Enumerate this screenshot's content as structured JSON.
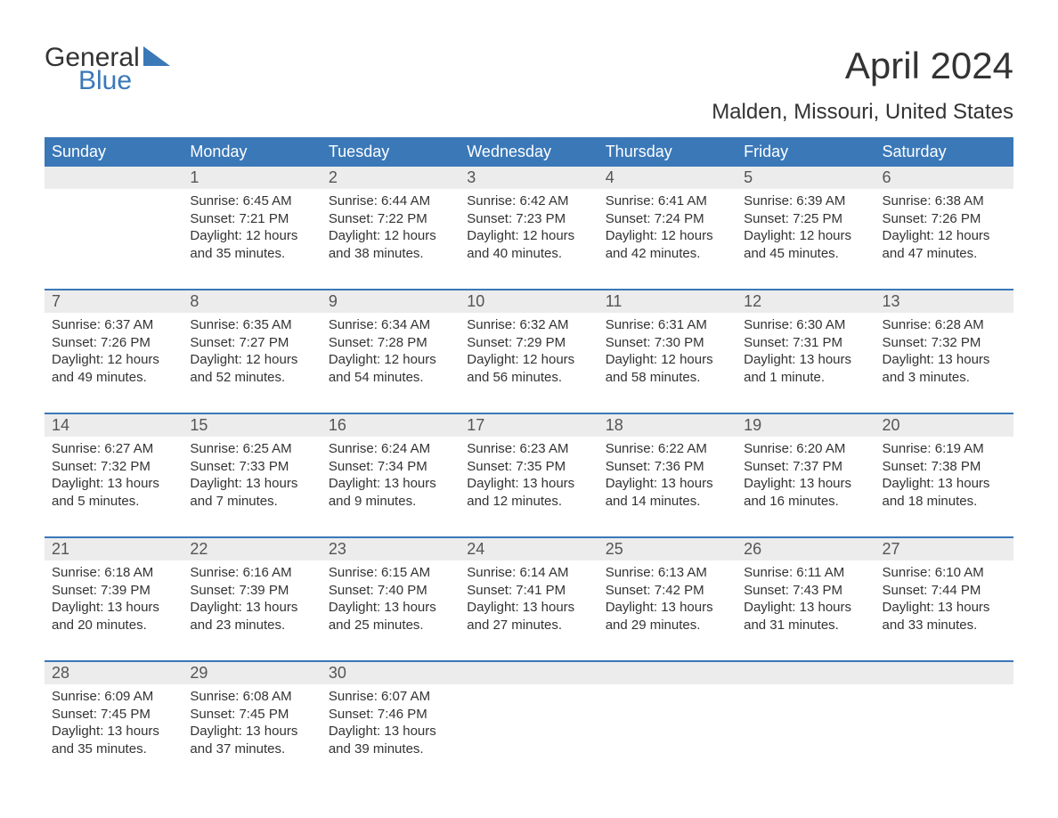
{
  "logo": {
    "word1": "General",
    "word2": "Blue",
    "word1_color": "#333333",
    "word2_color": "#3a78b8",
    "triangle_color": "#3a78b8"
  },
  "title": "April 2024",
  "subtitle": "Malden, Missouri, United States",
  "colors": {
    "header_bg": "#3a78b8",
    "header_text": "#ffffff",
    "daynum_bg": "#ececec",
    "divider": "#3a78b8",
    "body_text": "#333333",
    "background": "#ffffff"
  },
  "font": {
    "title_size": 42,
    "subtitle_size": 24,
    "dayhead_size": 18,
    "daynum_size": 18,
    "cell_size": 15
  },
  "day_headers": [
    "Sunday",
    "Monday",
    "Tuesday",
    "Wednesday",
    "Thursday",
    "Friday",
    "Saturday"
  ],
  "weeks": [
    {
      "nums": [
        "",
        "1",
        "2",
        "3",
        "4",
        "5",
        "6"
      ],
      "cells": [
        {
          "sunrise": "",
          "sunset": "",
          "daylight1": "",
          "daylight2": ""
        },
        {
          "sunrise": "Sunrise: 6:45 AM",
          "sunset": "Sunset: 7:21 PM",
          "daylight1": "Daylight: 12 hours",
          "daylight2": "and 35 minutes."
        },
        {
          "sunrise": "Sunrise: 6:44 AM",
          "sunset": "Sunset: 7:22 PM",
          "daylight1": "Daylight: 12 hours",
          "daylight2": "and 38 minutes."
        },
        {
          "sunrise": "Sunrise: 6:42 AM",
          "sunset": "Sunset: 7:23 PM",
          "daylight1": "Daylight: 12 hours",
          "daylight2": "and 40 minutes."
        },
        {
          "sunrise": "Sunrise: 6:41 AM",
          "sunset": "Sunset: 7:24 PM",
          "daylight1": "Daylight: 12 hours",
          "daylight2": "and 42 minutes."
        },
        {
          "sunrise": "Sunrise: 6:39 AM",
          "sunset": "Sunset: 7:25 PM",
          "daylight1": "Daylight: 12 hours",
          "daylight2": "and 45 minutes."
        },
        {
          "sunrise": "Sunrise: 6:38 AM",
          "sunset": "Sunset: 7:26 PM",
          "daylight1": "Daylight: 12 hours",
          "daylight2": "and 47 minutes."
        }
      ]
    },
    {
      "nums": [
        "7",
        "8",
        "9",
        "10",
        "11",
        "12",
        "13"
      ],
      "cells": [
        {
          "sunrise": "Sunrise: 6:37 AM",
          "sunset": "Sunset: 7:26 PM",
          "daylight1": "Daylight: 12 hours",
          "daylight2": "and 49 minutes."
        },
        {
          "sunrise": "Sunrise: 6:35 AM",
          "sunset": "Sunset: 7:27 PM",
          "daylight1": "Daylight: 12 hours",
          "daylight2": "and 52 minutes."
        },
        {
          "sunrise": "Sunrise: 6:34 AM",
          "sunset": "Sunset: 7:28 PM",
          "daylight1": "Daylight: 12 hours",
          "daylight2": "and 54 minutes."
        },
        {
          "sunrise": "Sunrise: 6:32 AM",
          "sunset": "Sunset: 7:29 PM",
          "daylight1": "Daylight: 12 hours",
          "daylight2": "and 56 minutes."
        },
        {
          "sunrise": "Sunrise: 6:31 AM",
          "sunset": "Sunset: 7:30 PM",
          "daylight1": "Daylight: 12 hours",
          "daylight2": "and 58 minutes."
        },
        {
          "sunrise": "Sunrise: 6:30 AM",
          "sunset": "Sunset: 7:31 PM",
          "daylight1": "Daylight: 13 hours",
          "daylight2": "and 1 minute."
        },
        {
          "sunrise": "Sunrise: 6:28 AM",
          "sunset": "Sunset: 7:32 PM",
          "daylight1": "Daylight: 13 hours",
          "daylight2": "and 3 minutes."
        }
      ]
    },
    {
      "nums": [
        "14",
        "15",
        "16",
        "17",
        "18",
        "19",
        "20"
      ],
      "cells": [
        {
          "sunrise": "Sunrise: 6:27 AM",
          "sunset": "Sunset: 7:32 PM",
          "daylight1": "Daylight: 13 hours",
          "daylight2": "and 5 minutes."
        },
        {
          "sunrise": "Sunrise: 6:25 AM",
          "sunset": "Sunset: 7:33 PM",
          "daylight1": "Daylight: 13 hours",
          "daylight2": "and 7 minutes."
        },
        {
          "sunrise": "Sunrise: 6:24 AM",
          "sunset": "Sunset: 7:34 PM",
          "daylight1": "Daylight: 13 hours",
          "daylight2": "and 9 minutes."
        },
        {
          "sunrise": "Sunrise: 6:23 AM",
          "sunset": "Sunset: 7:35 PM",
          "daylight1": "Daylight: 13 hours",
          "daylight2": "and 12 minutes."
        },
        {
          "sunrise": "Sunrise: 6:22 AM",
          "sunset": "Sunset: 7:36 PM",
          "daylight1": "Daylight: 13 hours",
          "daylight2": "and 14 minutes."
        },
        {
          "sunrise": "Sunrise: 6:20 AM",
          "sunset": "Sunset: 7:37 PM",
          "daylight1": "Daylight: 13 hours",
          "daylight2": "and 16 minutes."
        },
        {
          "sunrise": "Sunrise: 6:19 AM",
          "sunset": "Sunset: 7:38 PM",
          "daylight1": "Daylight: 13 hours",
          "daylight2": "and 18 minutes."
        }
      ]
    },
    {
      "nums": [
        "21",
        "22",
        "23",
        "24",
        "25",
        "26",
        "27"
      ],
      "cells": [
        {
          "sunrise": "Sunrise: 6:18 AM",
          "sunset": "Sunset: 7:39 PM",
          "daylight1": "Daylight: 13 hours",
          "daylight2": "and 20 minutes."
        },
        {
          "sunrise": "Sunrise: 6:16 AM",
          "sunset": "Sunset: 7:39 PM",
          "daylight1": "Daylight: 13 hours",
          "daylight2": "and 23 minutes."
        },
        {
          "sunrise": "Sunrise: 6:15 AM",
          "sunset": "Sunset: 7:40 PM",
          "daylight1": "Daylight: 13 hours",
          "daylight2": "and 25 minutes."
        },
        {
          "sunrise": "Sunrise: 6:14 AM",
          "sunset": "Sunset: 7:41 PM",
          "daylight1": "Daylight: 13 hours",
          "daylight2": "and 27 minutes."
        },
        {
          "sunrise": "Sunrise: 6:13 AM",
          "sunset": "Sunset: 7:42 PM",
          "daylight1": "Daylight: 13 hours",
          "daylight2": "and 29 minutes."
        },
        {
          "sunrise": "Sunrise: 6:11 AM",
          "sunset": "Sunset: 7:43 PM",
          "daylight1": "Daylight: 13 hours",
          "daylight2": "and 31 minutes."
        },
        {
          "sunrise": "Sunrise: 6:10 AM",
          "sunset": "Sunset: 7:44 PM",
          "daylight1": "Daylight: 13 hours",
          "daylight2": "and 33 minutes."
        }
      ]
    },
    {
      "nums": [
        "28",
        "29",
        "30",
        "",
        "",
        "",
        ""
      ],
      "cells": [
        {
          "sunrise": "Sunrise: 6:09 AM",
          "sunset": "Sunset: 7:45 PM",
          "daylight1": "Daylight: 13 hours",
          "daylight2": "and 35 minutes."
        },
        {
          "sunrise": "Sunrise: 6:08 AM",
          "sunset": "Sunset: 7:45 PM",
          "daylight1": "Daylight: 13 hours",
          "daylight2": "and 37 minutes."
        },
        {
          "sunrise": "Sunrise: 6:07 AM",
          "sunset": "Sunset: 7:46 PM",
          "daylight1": "Daylight: 13 hours",
          "daylight2": "and 39 minutes."
        },
        {
          "sunrise": "",
          "sunset": "",
          "daylight1": "",
          "daylight2": ""
        },
        {
          "sunrise": "",
          "sunset": "",
          "daylight1": "",
          "daylight2": ""
        },
        {
          "sunrise": "",
          "sunset": "",
          "daylight1": "",
          "daylight2": ""
        },
        {
          "sunrise": "",
          "sunset": "",
          "daylight1": "",
          "daylight2": ""
        }
      ]
    }
  ]
}
